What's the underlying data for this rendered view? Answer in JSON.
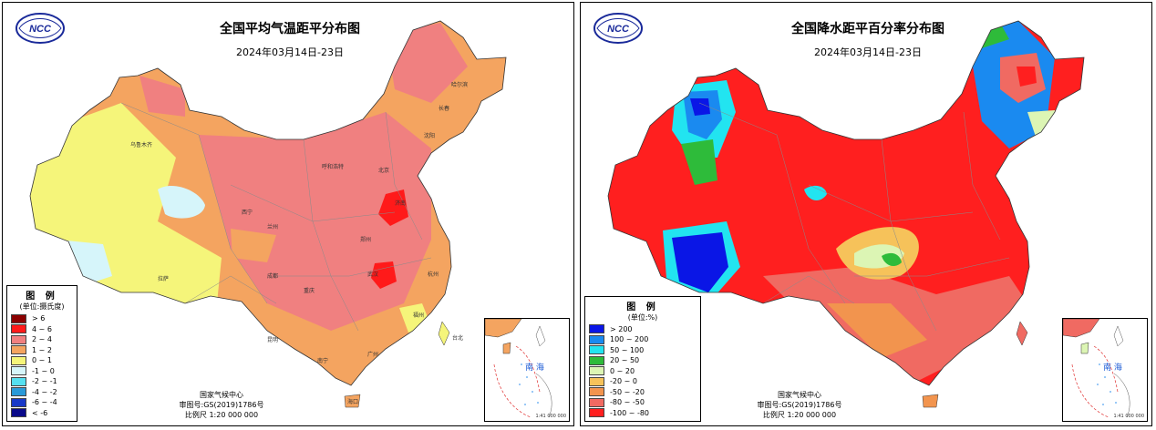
{
  "colors": {
    "temp": [
      "#8b0000",
      "#ff1a1a",
      "#f08080",
      "#f4a460",
      "#f5f57a",
      "#d6f5fa",
      "#55e0f0",
      "#2a9ad8",
      "#1838c8",
      "#0a0a8a"
    ],
    "precip": [
      "#0a16e6",
      "#1a8af0",
      "#22e4f0",
      "#2ebb3a",
      "#dcf5b4",
      "#f6c25a",
      "#f2944e",
      "#f06a62",
      "#ff1f1f"
    ]
  },
  "left": {
    "title": "全国平均气温距平分布图",
    "date": "2024年03月14日-23日",
    "legend": {
      "title": "图 例",
      "unit": "(单位:摄氏度)",
      "items": [
        {
          "label": "> 6",
          "color": "#8b0000"
        },
        {
          "label": "4 ~ 6",
          "color": "#ff1a1a"
        },
        {
          "label": "2 ~ 4",
          "color": "#f08080"
        },
        {
          "label": "1 ~ 2",
          "color": "#f4a460"
        },
        {
          "label": "0 ~ 1",
          "color": "#f5f57a"
        },
        {
          "label": "-1 ~ 0",
          "color": "#d6f5fa"
        },
        {
          "label": "-2 ~ -1",
          "color": "#55e0f0"
        },
        {
          "label": "-4 ~ -2",
          "color": "#2a9ad8"
        },
        {
          "label": "-6 ~ -4",
          "color": "#1838c8"
        },
        {
          "label": "< -6",
          "color": "#0a0a8a"
        }
      ]
    },
    "credits": {
      "org": "国家气候中心",
      "review": "审图号:GS(2019)1786号",
      "scale": "比例尺 1:20 000 000"
    },
    "inset": {
      "label": "南 海",
      "scale": "1:41 000 000"
    },
    "places": [
      "乌鲁木齐",
      "拉萨",
      "西宁",
      "兰州",
      "呼和浩特",
      "北京",
      "沈阳",
      "长春",
      "哈尔滨",
      "济南",
      "郑州",
      "武汉",
      "成都",
      "重庆",
      "昆明",
      "南宁",
      "广州",
      "福州",
      "杭州",
      "台北",
      "海口"
    ]
  },
  "right": {
    "title": "全国降水距平百分率分布图",
    "date": "2024年03月14日-23日",
    "legend": {
      "title": "图 例",
      "unit": "(单位:%)",
      "items": [
        {
          "label": "> 200",
          "color": "#0a16e6"
        },
        {
          "label": "100 ~ 200",
          "color": "#1a8af0"
        },
        {
          "label": "50 ~ 100",
          "color": "#22e4f0"
        },
        {
          "label": "20 ~ 50",
          "color": "#2ebb3a"
        },
        {
          "label": "0 ~ 20",
          "color": "#dcf5b4"
        },
        {
          "label": "-20 ~ 0",
          "color": "#f6c25a"
        },
        {
          "label": "-50 ~ -20",
          "color": "#f2944e"
        },
        {
          "label": "-80 ~ -50",
          "color": "#f06a62"
        },
        {
          "label": "-100 ~ -80",
          "color": "#ff1f1f"
        }
      ]
    },
    "credits": {
      "org": "国家气候中心",
      "review": "审图号:GS(2019)1786号",
      "scale": "比例尺 1:20 000 000"
    },
    "inset": {
      "label": "南 海",
      "scale": "1:41 000 000"
    }
  }
}
